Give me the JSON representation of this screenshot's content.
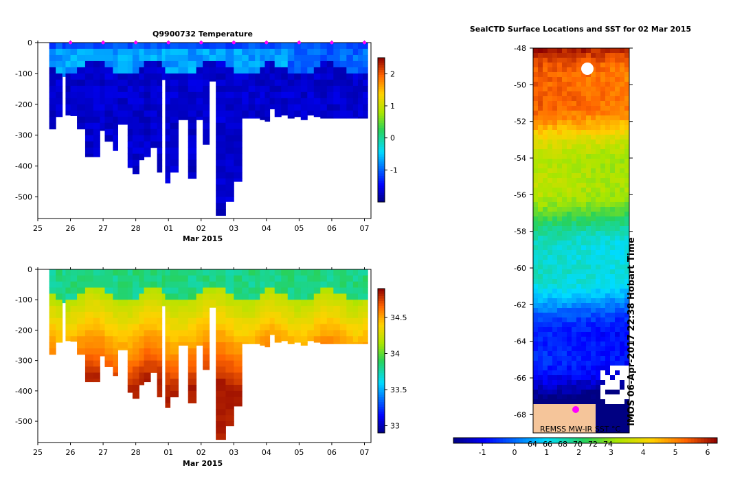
{
  "chart_data": [
    {
      "type": "heatmap",
      "title": "Q9900732  Temperature",
      "xlabel": "Mar 2015",
      "ylabel": "",
      "xticks": [
        "25",
        "26",
        "27",
        "28",
        "01",
        "02",
        "03",
        "04",
        "05",
        "06",
        "07"
      ],
      "yticks": [
        0,
        -100,
        -200,
        -300,
        -400,
        -500
      ],
      "ylim": [
        -570,
        0
      ],
      "colorbar_ticks": [
        2,
        1,
        0,
        -1
      ],
      "colorbar_range": [
        -2.0,
        2.5
      ],
      "profile_days": [
        0.35,
        0.55,
        0.75,
        0.85,
        1.0,
        1.2,
        1.45,
        1.7,
        1.9,
        2.05,
        2.3,
        2.45,
        2.75,
        2.9,
        3.1,
        3.25,
        3.45,
        3.65,
        3.8,
        3.9,
        4.05,
        4.3,
        4.6,
        4.85,
        5.05,
        5.25,
        5.45,
        5.75,
        6.0,
        6.25,
        6.45,
        6.65,
        6.8,
        6.95,
        7.1,
        7.25,
        7.45,
        7.65,
        7.85,
        8.05,
        8.25,
        8.45,
        8.65,
        8.85,
        9.05,
        9.25,
        9.45,
        9.65,
        9.8,
        9.95
      ],
      "profile_depths": [
        280,
        240,
        110,
        235,
        237,
        280,
        370,
        370,
        285,
        320,
        350,
        265,
        405,
        425,
        380,
        370,
        340,
        420,
        120,
        455,
        420,
        250,
        440,
        250,
        330,
        125,
        565,
        515,
        450,
        245,
        245,
        245,
        250,
        255,
        215,
        240,
        235,
        245,
        240,
        250,
        235,
        240,
        245,
        245,
        245,
        245,
        245,
        245,
        245,
        245
      ],
      "mixed_layer_temp": -1.0,
      "deep_temp": -1.7,
      "markers_x_days": [
        1,
        2,
        3,
        4,
        5,
        6,
        7,
        8,
        9,
        10
      ]
    },
    {
      "type": "heatmap",
      "title": "",
      "xlabel": "Mar 2015",
      "ylabel": "",
      "xticks": [
        "25",
        "26",
        "27",
        "28",
        "01",
        "02",
        "03",
        "04",
        "05",
        "06",
        "07"
      ],
      "yticks": [
        0,
        -100,
        -200,
        -300,
        -400,
        -500
      ],
      "ylim": [
        -570,
        0
      ],
      "colorbar_ticks": [
        34.5,
        34,
        33.5,
        33
      ],
      "colorbar_range": [
        32.9,
        34.9
      ],
      "mixed_layer_salinity": 33.85,
      "deep_salinity": 34.75
    },
    {
      "type": "heatmap",
      "title": "SealCTD Surface Locations and SST for 02 Mar 2015",
      "yticks": [
        -48,
        -50,
        -52,
        -54,
        -56,
        -58,
        -60,
        -62,
        -64,
        -66,
        -68
      ],
      "ylim": [
        -69,
        -48
      ],
      "colorbar_ticks": [
        -1,
        0,
        1,
        2,
        3,
        4,
        5,
        6
      ],
      "colorbar_range": [
        -1.9,
        6.3
      ],
      "overlay_ticks": [
        "64",
        "66",
        "68",
        "70",
        "72",
        "74"
      ],
      "map_label": "REMSS MW-IR SST °C",
      "credit": "IMOS 06-Apr-2017 22:38 Hobart Time"
    }
  ]
}
